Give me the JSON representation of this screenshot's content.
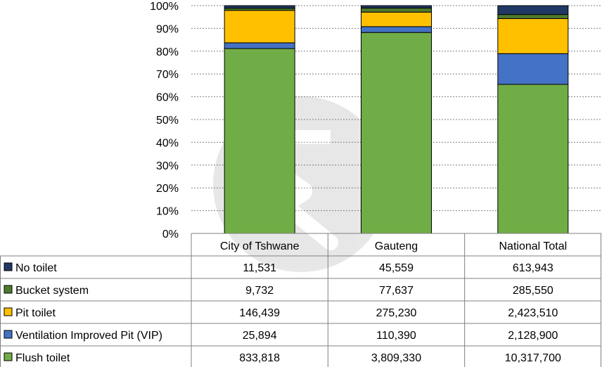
{
  "chart_data": {
    "type": "bar",
    "stacked": "percent",
    "categories": [
      "City of Tshwane",
      "Gauteng",
      "National Total"
    ],
    "series": [
      {
        "name": "Flush toilet",
        "color": "#70ad47",
        "values": [
          833818,
          3809330,
          10317700
        ],
        "labels": [
          "833,818",
          "3,809,330",
          "10,317,700"
        ]
      },
      {
        "name": "Ventilation Improved Pit (VIP)",
        "color": "#4472c4",
        "values": [
          25894,
          110390,
          2128900
        ],
        "labels": [
          "25,894",
          "110,390",
          "2,128,900"
        ]
      },
      {
        "name": "Pit toilet",
        "color": "#ffc000",
        "values": [
          146439,
          275230,
          2423510
        ],
        "labels": [
          "146,439",
          "275,230",
          "2,423,510"
        ]
      },
      {
        "name": "Bucket system",
        "color": "#4e7a2e",
        "values": [
          9732,
          77637,
          285550
        ],
        "labels": [
          "9,732",
          "77,637",
          "285,550"
        ]
      },
      {
        "name": "No toilet",
        "color": "#203864",
        "values": [
          11531,
          45559,
          613943
        ],
        "labels": [
          "11,531",
          "45,559",
          "613,943"
        ]
      }
    ],
    "table_row_order": [
      "No toilet",
      "Bucket system",
      "Pit toilet",
      "Ventilation Improved Pit (VIP)",
      "Flush toilet"
    ],
    "ytick_labels": [
      "0%",
      "10%",
      "20%",
      "30%",
      "40%",
      "50%",
      "60%",
      "70%",
      "80%",
      "90%",
      "100%"
    ],
    "ylim": [
      0,
      100
    ],
    "grid": true,
    "legend": "data-table"
  }
}
